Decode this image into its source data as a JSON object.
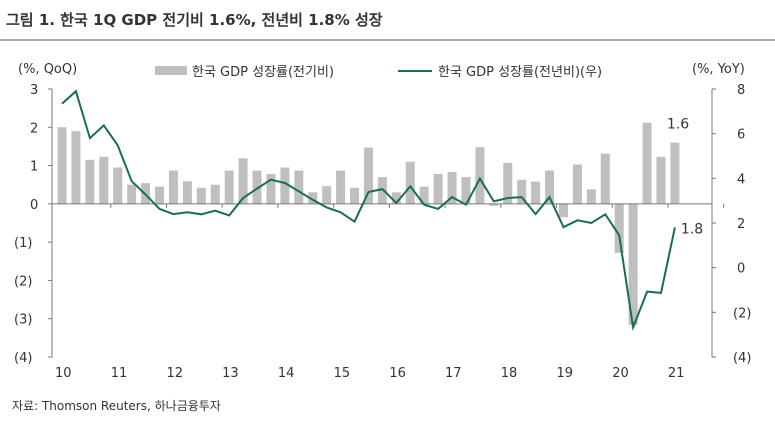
{
  "chart_data": {
    "type": "bar+line",
    "title": "그림 1. 한국 1Q GDP 전기비 1.6%, 전년비 1.8% 성장",
    "left_axis_label": "(%, QoQ)",
    "right_axis_label": "(%, YoY)",
    "left_ylim": [
      -4,
      3
    ],
    "right_ylim": [
      -4,
      8
    ],
    "left_ticks": [
      "3",
      "2",
      "1",
      "0",
      "(1)",
      "(2)",
      "(3)",
      "(4)"
    ],
    "left_tick_values": [
      3,
      2,
      1,
      0,
      -1,
      -2,
      -3,
      -4
    ],
    "right_ticks": [
      "8",
      "6",
      "4",
      "2",
      "0",
      "(2)",
      "(4)"
    ],
    "right_tick_values": [
      8,
      6,
      4,
      2,
      0,
      -2,
      -4
    ],
    "x_ticks": [
      "10",
      "11",
      "12",
      "13",
      "14",
      "15",
      "16",
      "17",
      "18",
      "19",
      "20",
      "21"
    ],
    "legend": [
      {
        "name": "한국 GDP 성장률(전기비)",
        "type": "bar",
        "color": "#bfbfbf"
      },
      {
        "name": "한국 GDP 성장률(전년비)(우)",
        "type": "line",
        "color": "#1b6b5a"
      }
    ],
    "legend_position": "top",
    "x_start": "2010Q1",
    "x_end": "2021Q1",
    "series": [
      {
        "name": "한국 GDP 성장률(전기비)",
        "axis": "left",
        "values": [
          2.0,
          1.9,
          1.15,
          1.23,
          0.95,
          0.5,
          0.54,
          0.45,
          0.87,
          0.59,
          0.42,
          0.5,
          0.87,
          1.19,
          0.87,
          0.78,
          0.95,
          0.87,
          0.3,
          0.46,
          0.87,
          0.42,
          1.47,
          0.7,
          0.3,
          1.1,
          0.45,
          0.78,
          0.83,
          0.7,
          1.48,
          -0.05,
          1.07,
          0.63,
          0.58,
          0.87,
          -0.35,
          1.03,
          0.38,
          1.31,
          -1.28,
          -3.16,
          2.12,
          1.23,
          1.6
        ]
      },
      {
        "name": "한국 GDP 성장률(전년비)(우)",
        "axis": "right",
        "values": [
          7.34,
          7.9,
          5.8,
          6.37,
          5.48,
          3.87,
          3.27,
          2.63,
          2.4,
          2.48,
          2.39,
          2.55,
          2.34,
          3.12,
          3.54,
          3.94,
          3.79,
          3.42,
          3.04,
          2.7,
          2.48,
          2.06,
          3.39,
          3.52,
          2.9,
          3.64,
          2.82,
          2.63,
          3.16,
          2.82,
          3.99,
          2.97,
          3.12,
          3.16,
          2.4,
          3.16,
          1.81,
          2.12,
          2.0,
          2.39,
          1.45,
          -2.67,
          -1.07,
          -1.13,
          1.8
        ]
      }
    ],
    "annotations": [
      "1.6",
      "1.8"
    ]
  },
  "source": "자료: Thomson Reuters, 하나금융투자"
}
